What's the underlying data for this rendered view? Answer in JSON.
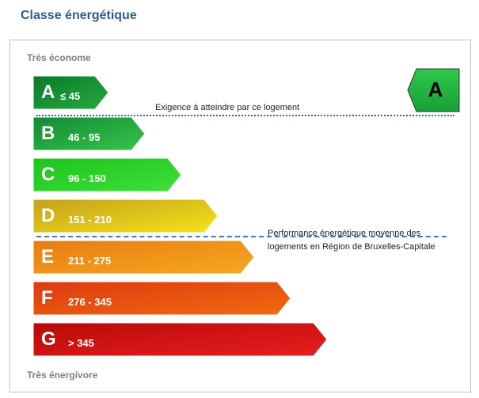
{
  "title": "Classe énergétique",
  "scale": {
    "top": "Très économe",
    "bottom": "Très énergivore"
  },
  "bars": [
    {
      "letter": "A",
      "range": "≤ 45",
      "color_start": "#0a7a2c",
      "color_end": "#27a83c"
    },
    {
      "letter": "B",
      "range": "46 - 95",
      "color_start": "#138a35",
      "color_end": "#35c54a"
    },
    {
      "letter": "C",
      "range": "96 - 150",
      "color_start": "#1ec31e",
      "color_end": "#3fe03a"
    },
    {
      "letter": "D",
      "range": "151 - 210",
      "color_start": "#c2a21a",
      "color_end": "#f7e21a"
    },
    {
      "letter": "E",
      "range": "211 - 275",
      "color_start": "#e77c14",
      "color_end": "#f7a91f"
    },
    {
      "letter": "F",
      "range": "276 - 345",
      "color_start": "#de3a10",
      "color_end": "#f06a10"
    },
    {
      "letter": "G",
      "range": "> 345",
      "color_start": "#b80a0a",
      "color_end": "#e81e1e"
    }
  ],
  "requirement": {
    "label": "Exigence à atteindre par ce logement",
    "class": "A",
    "color": "#18a03a"
  },
  "average": {
    "line1": "Performance énergétique moyenne des",
    "line2": "logements en Région de Bruxelles-Capitale"
  }
}
